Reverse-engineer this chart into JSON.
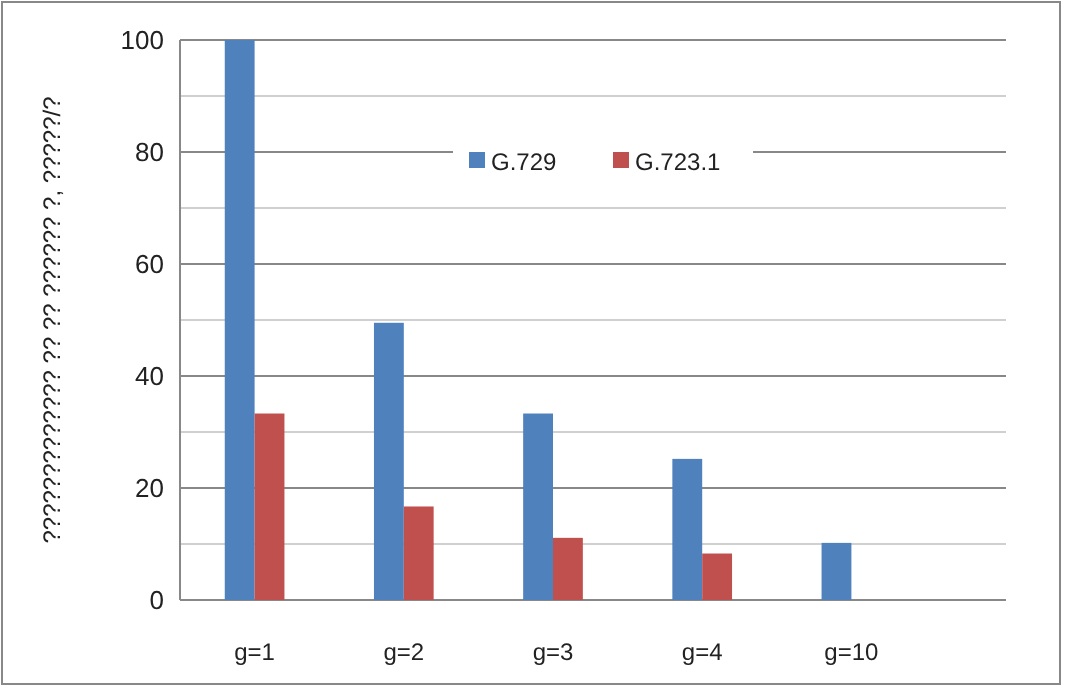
{
  "chart_data": {
    "type": "bar",
    "ylabel": "????????????? ?? ?? ?????? ?, ?????/?",
    "categories": [
      "g=1",
      "g=2",
      "g=3",
      "g=4",
      "g=10"
    ],
    "series": [
      {
        "name": "G.729",
        "color": "#4f81bd",
        "values": [
          100,
          49.5,
          33.3,
          25.2,
          10.2
        ]
      },
      {
        "name": "G.723.1",
        "color": "#c0504d",
        "values": [
          33.3,
          16.7,
          11.1,
          8.3,
          null
        ]
      }
    ],
    "ylim": [
      0,
      100
    ],
    "yticks": [
      0,
      {
        "value": 10,
        "label": null
      },
      20,
      {
        "value": 30,
        "label": null
      },
      40,
      {
        "value": 50,
        "label": null
      },
      60,
      {
        "value": 70,
        "label": null
      },
      80,
      {
        "value": 90,
        "label": null
      },
      100
    ],
    "grid": "y",
    "legend": "top"
  }
}
